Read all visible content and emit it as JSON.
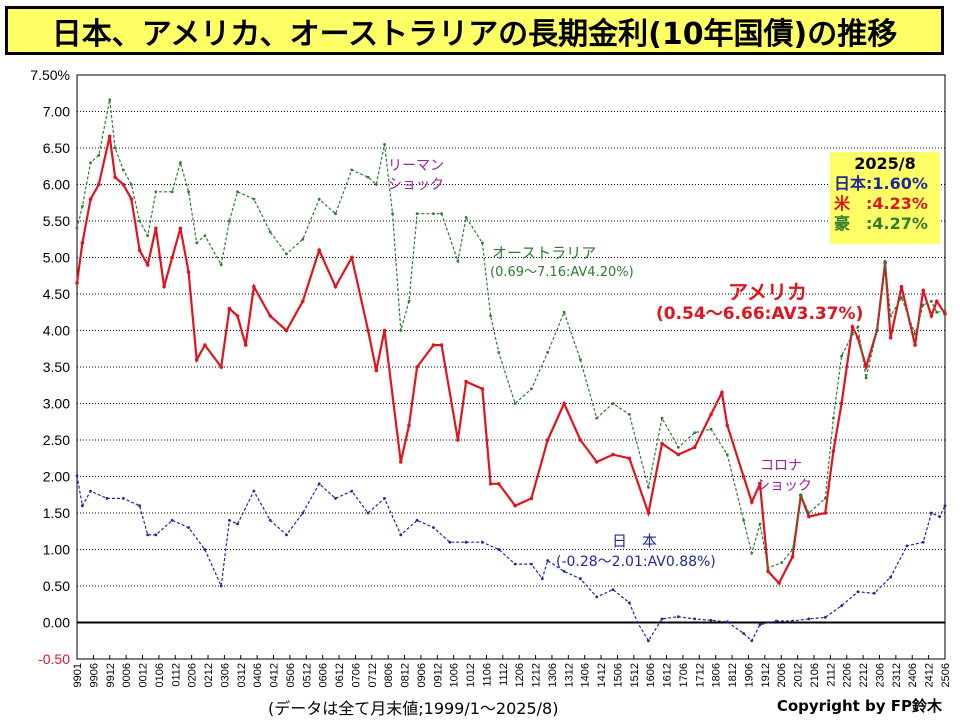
{
  "title": "日本、アメリカ、オーストラリアの長期金利(10年国債)の推移",
  "footer_note": "(データは全て月末値;1999/1～2025/8)",
  "copyright": "Copyright by FP鈴木",
  "colors": {
    "japan": "#1f2a99",
    "usa": "#e0141e",
    "australia": "#2e7d32",
    "title_bg": "#ffff66",
    "grid": "#000000",
    "annotation": "#a020a0"
  },
  "latest_box": {
    "date": "2025/8",
    "japan": "日本:1.60%",
    "usa": "米　:4.23%",
    "australia": "豪　:4.27%"
  },
  "annotations": {
    "lehman": [
      "リーマン",
      "ショック"
    ],
    "corona": [
      "コロナ",
      "ショック"
    ],
    "australia": [
      "オーストラリア",
      "(0.69～7.16:AV4.20%)"
    ],
    "usa": [
      "アメリカ",
      "(0.54～6.66:AV3.37%)"
    ],
    "japan": [
      "日　本",
      "(-0.28～2.01:AV0.88%)"
    ]
  },
  "chart_data": {
    "type": "line",
    "title": "日本、アメリカ、オーストラリアの長期金利(10年国債)の推移",
    "ylim": [
      -0.5,
      7.5
    ],
    "y_ticks": [
      "7.50%",
      "7.00",
      "6.50",
      "6.00",
      "5.50",
      "5.00",
      "4.50",
      "4.00",
      "3.50",
      "3.00",
      "2.50",
      "2.00",
      "1.50",
      "1.00",
      "0.50",
      "0.00",
      "-0.50"
    ],
    "y_tick_values": [
      7.5,
      7.0,
      6.5,
      6.0,
      5.5,
      5.0,
      4.5,
      4.0,
      3.5,
      3.0,
      2.5,
      2.0,
      1.5,
      1.0,
      0.5,
      0.0,
      -0.5
    ],
    "x_range": [
      "1999-01",
      "2025-08"
    ],
    "x_tick_labels": [
      "9901",
      "9906",
      "9912",
      "0006",
      "0012",
      "0106",
      "0112",
      "0206",
      "0212",
      "0306",
      "0312",
      "0406",
      "0412",
      "0506",
      "0512",
      "0606",
      "0612",
      "0706",
      "0712",
      "0806",
      "0812",
      "0906",
      "0912",
      "1006",
      "1012",
      "1106",
      "1112",
      "1206",
      "1212",
      "1306",
      "1312",
      "1406",
      "1412",
      "1506",
      "1512",
      "1606",
      "1612",
      "1706",
      "1712",
      "1806",
      "1812",
      "1906",
      "1912",
      "2006",
      "2012",
      "2106",
      "2112",
      "2206",
      "2212",
      "2306",
      "2312",
      "2406",
      "2412",
      "2506"
    ],
    "grid": true,
    "legend": "none",
    "series": [
      {
        "name": "日本",
        "color_key": "japan",
        "points": [
          [
            "1999-01",
            2.01
          ],
          [
            "1999-03",
            1.6
          ],
          [
            "1999-06",
            1.8
          ],
          [
            "1999-12",
            1.7
          ],
          [
            "2000-06",
            1.7
          ],
          [
            "2000-12",
            1.6
          ],
          [
            "2001-03",
            1.2
          ],
          [
            "2001-06",
            1.2
          ],
          [
            "2001-12",
            1.4
          ],
          [
            "2002-06",
            1.3
          ],
          [
            "2002-12",
            1.0
          ],
          [
            "2003-06",
            0.5
          ],
          [
            "2003-09",
            1.4
          ],
          [
            "2003-12",
            1.35
          ],
          [
            "2004-06",
            1.8
          ],
          [
            "2004-12",
            1.4
          ],
          [
            "2005-06",
            1.2
          ],
          [
            "2005-12",
            1.5
          ],
          [
            "2006-06",
            1.9
          ],
          [
            "2006-12",
            1.7
          ],
          [
            "2007-06",
            1.8
          ],
          [
            "2007-12",
            1.5
          ],
          [
            "2008-06",
            1.7
          ],
          [
            "2008-12",
            1.2
          ],
          [
            "2009-06",
            1.4
          ],
          [
            "2009-12",
            1.3
          ],
          [
            "2010-06",
            1.1
          ],
          [
            "2010-12",
            1.1
          ],
          [
            "2011-06",
            1.1
          ],
          [
            "2011-12",
            1.0
          ],
          [
            "2012-06",
            0.8
          ],
          [
            "2012-12",
            0.8
          ],
          [
            "2013-04",
            0.6
          ],
          [
            "2013-06",
            0.85
          ],
          [
            "2013-12",
            0.7
          ],
          [
            "2014-06",
            0.6
          ],
          [
            "2014-12",
            0.35
          ],
          [
            "2015-06",
            0.45
          ],
          [
            "2015-12",
            0.27
          ],
          [
            "2016-03",
            0.0
          ],
          [
            "2016-07",
            -0.25
          ],
          [
            "2016-12",
            0.05
          ],
          [
            "2017-06",
            0.08
          ],
          [
            "2017-12",
            0.05
          ],
          [
            "2018-06",
            0.03
          ],
          [
            "2018-12",
            0.01
          ],
          [
            "2019-06",
            -0.15
          ],
          [
            "2019-09",
            -0.25
          ],
          [
            "2019-12",
            -0.03
          ],
          [
            "2020-06",
            0.02
          ],
          [
            "2020-12",
            0.02
          ],
          [
            "2021-06",
            0.05
          ],
          [
            "2021-12",
            0.07
          ],
          [
            "2022-06",
            0.23
          ],
          [
            "2022-12",
            0.42
          ],
          [
            "2023-06",
            0.4
          ],
          [
            "2023-12",
            0.62
          ],
          [
            "2024-06",
            1.05
          ],
          [
            "2024-12",
            1.1
          ],
          [
            "2025-03",
            1.5
          ],
          [
            "2025-06",
            1.45
          ],
          [
            "2025-08",
            1.6
          ]
        ]
      },
      {
        "name": "米",
        "color_key": "usa",
        "points": [
          [
            "1999-01",
            4.65
          ],
          [
            "1999-03",
            5.2
          ],
          [
            "1999-06",
            5.8
          ],
          [
            "1999-09",
            6.0
          ],
          [
            "2000-01",
            6.66
          ],
          [
            "2000-03",
            6.1
          ],
          [
            "2000-06",
            6.0
          ],
          [
            "2000-09",
            5.8
          ],
          [
            "2000-12",
            5.1
          ],
          [
            "2001-03",
            4.9
          ],
          [
            "2001-06",
            5.4
          ],
          [
            "2001-09",
            4.6
          ],
          [
            "2001-12",
            5.0
          ],
          [
            "2002-03",
            5.4
          ],
          [
            "2002-06",
            4.8
          ],
          [
            "2002-09",
            3.6
          ],
          [
            "2002-12",
            3.8
          ],
          [
            "2003-06",
            3.5
          ],
          [
            "2003-09",
            4.3
          ],
          [
            "2003-12",
            4.2
          ],
          [
            "2004-03",
            3.8
          ],
          [
            "2004-06",
            4.6
          ],
          [
            "2004-12",
            4.2
          ],
          [
            "2005-06",
            4.0
          ],
          [
            "2005-12",
            4.4
          ],
          [
            "2006-06",
            5.1
          ],
          [
            "2006-12",
            4.6
          ],
          [
            "2007-06",
            5.0
          ],
          [
            "2007-12",
            4.0
          ],
          [
            "2008-03",
            3.45
          ],
          [
            "2008-06",
            4.0
          ],
          [
            "2008-12",
            2.2
          ],
          [
            "2009-03",
            2.7
          ],
          [
            "2009-06",
            3.5
          ],
          [
            "2009-12",
            3.8
          ],
          [
            "2010-03",
            3.8
          ],
          [
            "2010-09",
            2.5
          ],
          [
            "2010-12",
            3.3
          ],
          [
            "2011-06",
            3.2
          ],
          [
            "2011-09",
            1.9
          ],
          [
            "2011-12",
            1.9
          ],
          [
            "2012-06",
            1.6
          ],
          [
            "2012-12",
            1.7
          ],
          [
            "2013-06",
            2.5
          ],
          [
            "2013-12",
            3.0
          ],
          [
            "2014-06",
            2.5
          ],
          [
            "2014-12",
            2.2
          ],
          [
            "2015-06",
            2.3
          ],
          [
            "2015-12",
            2.25
          ],
          [
            "2016-07",
            1.5
          ],
          [
            "2016-12",
            2.45
          ],
          [
            "2017-06",
            2.3
          ],
          [
            "2017-12",
            2.4
          ],
          [
            "2018-06",
            2.85
          ],
          [
            "2018-10",
            3.15
          ],
          [
            "2018-12",
            2.7
          ],
          [
            "2019-06",
            2.0
          ],
          [
            "2019-09",
            1.65
          ],
          [
            "2019-12",
            1.9
          ],
          [
            "2020-03",
            0.7
          ],
          [
            "2020-07",
            0.54
          ],
          [
            "2020-12",
            0.9
          ],
          [
            "2021-03",
            1.74
          ],
          [
            "2021-06",
            1.45
          ],
          [
            "2021-12",
            1.5
          ],
          [
            "2022-03",
            2.35
          ],
          [
            "2022-06",
            3.0
          ],
          [
            "2022-10",
            4.05
          ],
          [
            "2022-12",
            3.9
          ],
          [
            "2023-03",
            3.5
          ],
          [
            "2023-07",
            4.0
          ],
          [
            "2023-10",
            4.93
          ],
          [
            "2023-12",
            3.9
          ],
          [
            "2024-04",
            4.6
          ],
          [
            "2024-09",
            3.8
          ],
          [
            "2024-12",
            4.55
          ],
          [
            "2025-03",
            4.2
          ],
          [
            "2025-05",
            4.4
          ],
          [
            "2025-08",
            4.23
          ]
        ]
      },
      {
        "name": "豪",
        "color_key": "australia",
        "points": [
          [
            "1999-01",
            5.4
          ],
          [
            "1999-03",
            5.7
          ],
          [
            "1999-06",
            6.3
          ],
          [
            "1999-09",
            6.4
          ],
          [
            "2000-01",
            7.16
          ],
          [
            "2000-03",
            6.5
          ],
          [
            "2000-06",
            6.2
          ],
          [
            "2000-09",
            6.0
          ],
          [
            "2000-12",
            5.5
          ],
          [
            "2001-03",
            5.3
          ],
          [
            "2001-06",
            5.9
          ],
          [
            "2001-12",
            5.9
          ],
          [
            "2002-03",
            6.3
          ],
          [
            "2002-06",
            5.9
          ],
          [
            "2002-09",
            5.2
          ],
          [
            "2002-12",
            5.3
          ],
          [
            "2003-06",
            4.9
          ],
          [
            "2003-09",
            5.5
          ],
          [
            "2003-12",
            5.9
          ],
          [
            "2004-06",
            5.8
          ],
          [
            "2004-12",
            5.35
          ],
          [
            "2005-06",
            5.05
          ],
          [
            "2005-12",
            5.25
          ],
          [
            "2006-06",
            5.8
          ],
          [
            "2006-12",
            5.6
          ],
          [
            "2007-06",
            6.2
          ],
          [
            "2007-12",
            6.1
          ],
          [
            "2008-03",
            6.0
          ],
          [
            "2008-06",
            6.55
          ],
          [
            "2008-09",
            5.6
          ],
          [
            "2008-12",
            4.0
          ],
          [
            "2009-03",
            4.4
          ],
          [
            "2009-06",
            5.6
          ],
          [
            "2009-12",
            5.6
          ],
          [
            "2010-03",
            5.6
          ],
          [
            "2010-09",
            4.95
          ],
          [
            "2010-12",
            5.55
          ],
          [
            "2011-06",
            5.2
          ],
          [
            "2011-09",
            4.2
          ],
          [
            "2011-12",
            3.7
          ],
          [
            "2012-06",
            3.0
          ],
          [
            "2012-12",
            3.2
          ],
          [
            "2013-06",
            3.7
          ],
          [
            "2013-12",
            4.25
          ],
          [
            "2014-06",
            3.6
          ],
          [
            "2014-12",
            2.8
          ],
          [
            "2015-06",
            3.0
          ],
          [
            "2015-12",
            2.85
          ],
          [
            "2016-07",
            1.85
          ],
          [
            "2016-12",
            2.8
          ],
          [
            "2017-06",
            2.4
          ],
          [
            "2017-12",
            2.6
          ],
          [
            "2018-06",
            2.65
          ],
          [
            "2018-12",
            2.3
          ],
          [
            "2019-06",
            1.4
          ],
          [
            "2019-09",
            0.95
          ],
          [
            "2019-12",
            1.35
          ],
          [
            "2020-03",
            0.75
          ],
          [
            "2020-08",
            0.82
          ],
          [
            "2020-12",
            1.0
          ],
          [
            "2021-03",
            1.75
          ],
          [
            "2021-06",
            1.5
          ],
          [
            "2021-12",
            1.7
          ],
          [
            "2022-03",
            2.8
          ],
          [
            "2022-06",
            3.65
          ],
          [
            "2022-10",
            3.95
          ],
          [
            "2022-12",
            4.05
          ],
          [
            "2023-03",
            3.35
          ],
          [
            "2023-07",
            4.0
          ],
          [
            "2023-10",
            4.95
          ],
          [
            "2023-12",
            4.2
          ],
          [
            "2024-04",
            4.45
          ],
          [
            "2024-09",
            3.95
          ],
          [
            "2024-12",
            4.35
          ],
          [
            "2025-03",
            4.4
          ],
          [
            "2025-05",
            4.25
          ],
          [
            "2025-08",
            4.27
          ]
        ]
      }
    ]
  }
}
